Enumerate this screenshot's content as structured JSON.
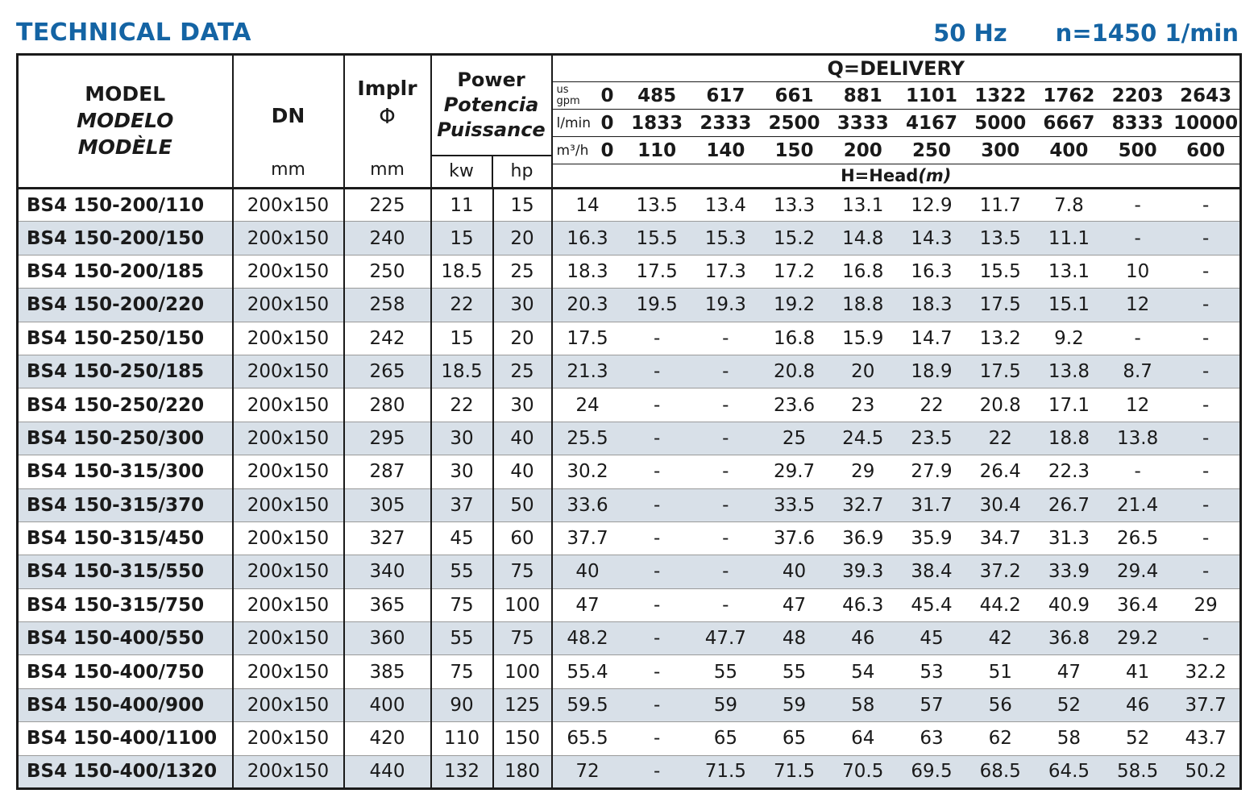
{
  "header": {
    "title": "TECHNICAL DATA",
    "frequency": "50 Hz",
    "speed": "n=1450 1/min"
  },
  "table": {
    "model_header": {
      "l1": "MODEL",
      "l2": "MODELO",
      "l3": "MODÈLE"
    },
    "dn_header": {
      "label": "DN",
      "unit": "mm"
    },
    "implr_header": {
      "l1": "Implr",
      "l2": "Φ",
      "unit": "mm"
    },
    "power_header": {
      "l1": "Power",
      "l2": "Potencia",
      "l3": "Puissance",
      "kw": "kw",
      "hp": "hp"
    },
    "delivery": {
      "title": "Q=DELIVERY",
      "unit_rows": [
        {
          "unit_lines": [
            "us",
            "gpm"
          ],
          "zero": "0",
          "values": [
            "485",
            "617",
            "661",
            "881",
            "1101",
            "1322",
            "1762",
            "2203",
            "2643"
          ]
        },
        {
          "unit_lines": [
            "l/min"
          ],
          "zero": "0",
          "values": [
            "1833",
            "2333",
            "2500",
            "3333",
            "4167",
            "5000",
            "6667",
            "8333",
            "10000"
          ]
        },
        {
          "unit_lines": [
            "m³/h"
          ],
          "zero": "0",
          "values": [
            "110",
            "140",
            "150",
            "200",
            "250",
            "300",
            "400",
            "500",
            "600"
          ]
        }
      ],
      "head_label": "H=Head",
      "head_unit": "(m)"
    },
    "rows": [
      {
        "model": "BS4 150-200/110",
        "dn": "200x150",
        "implr": "225",
        "kw": "11",
        "hp": "15",
        "head": [
          "14",
          "13.5",
          "13.4",
          "13.3",
          "13.1",
          "12.9",
          "11.7",
          "7.8",
          "-",
          "-"
        ]
      },
      {
        "model": "BS4 150-200/150",
        "dn": "200x150",
        "implr": "240",
        "kw": "15",
        "hp": "20",
        "head": [
          "16.3",
          "15.5",
          "15.3",
          "15.2",
          "14.8",
          "14.3",
          "13.5",
          "11.1",
          "-",
          "-"
        ]
      },
      {
        "model": "BS4 150-200/185",
        "dn": "200x150",
        "implr": "250",
        "kw": "18.5",
        "hp": "25",
        "head": [
          "18.3",
          "17.5",
          "17.3",
          "17.2",
          "16.8",
          "16.3",
          "15.5",
          "13.1",
          "10",
          "-"
        ]
      },
      {
        "model": "BS4 150-200/220",
        "dn": "200x150",
        "implr": "258",
        "kw": "22",
        "hp": "30",
        "head": [
          "20.3",
          "19.5",
          "19.3",
          "19.2",
          "18.8",
          "18.3",
          "17.5",
          "15.1",
          "12",
          "-"
        ]
      },
      {
        "model": "BS4 150-250/150",
        "dn": "200x150",
        "implr": "242",
        "kw": "15",
        "hp": "20",
        "head": [
          "17.5",
          "-",
          "-",
          "16.8",
          "15.9",
          "14.7",
          "13.2",
          "9.2",
          "-",
          "-"
        ]
      },
      {
        "model": "BS4 150-250/185",
        "dn": "200x150",
        "implr": "265",
        "kw": "18.5",
        "hp": "25",
        "head": [
          "21.3",
          "-",
          "-",
          "20.8",
          "20",
          "18.9",
          "17.5",
          "13.8",
          "8.7",
          "-"
        ]
      },
      {
        "model": "BS4 150-250/220",
        "dn": "200x150",
        "implr": "280",
        "kw": "22",
        "hp": "30",
        "head": [
          "24",
          "-",
          "-",
          "23.6",
          "23",
          "22",
          "20.8",
          "17.1",
          "12",
          "-"
        ]
      },
      {
        "model": "BS4 150-250/300",
        "dn": "200x150",
        "implr": "295",
        "kw": "30",
        "hp": "40",
        "head": [
          "25.5",
          "-",
          "-",
          "25",
          "24.5",
          "23.5",
          "22",
          "18.8",
          "13.8",
          "-"
        ]
      },
      {
        "model": "BS4 150-315/300",
        "dn": "200x150",
        "implr": "287",
        "kw": "30",
        "hp": "40",
        "head": [
          "30.2",
          "-",
          "-",
          "29.7",
          "29",
          "27.9",
          "26.4",
          "22.3",
          "-",
          "-"
        ]
      },
      {
        "model": "BS4 150-315/370",
        "dn": "200x150",
        "implr": "305",
        "kw": "37",
        "hp": "50",
        "head": [
          "33.6",
          "-",
          "-",
          "33.5",
          "32.7",
          "31.7",
          "30.4",
          "26.7",
          "21.4",
          "-"
        ]
      },
      {
        "model": "BS4 150-315/450",
        "dn": "200x150",
        "implr": "327",
        "kw": "45",
        "hp": "60",
        "head": [
          "37.7",
          "-",
          "-",
          "37.6",
          "36.9",
          "35.9",
          "34.7",
          "31.3",
          "26.5",
          "-"
        ]
      },
      {
        "model": "BS4 150-315/550",
        "dn": "200x150",
        "implr": "340",
        "kw": "55",
        "hp": "75",
        "head": [
          "40",
          "-",
          "-",
          "40",
          "39.3",
          "38.4",
          "37.2",
          "33.9",
          "29.4",
          "-"
        ]
      },
      {
        "model": "BS4 150-315/750",
        "dn": "200x150",
        "implr": "365",
        "kw": "75",
        "hp": "100",
        "head": [
          "47",
          "-",
          "-",
          "47",
          "46.3",
          "45.4",
          "44.2",
          "40.9",
          "36.4",
          "29"
        ]
      },
      {
        "model": "BS4 150-400/550",
        "dn": "200x150",
        "implr": "360",
        "kw": "55",
        "hp": "75",
        "head": [
          "48.2",
          "-",
          "47.7",
          "48",
          "46",
          "45",
          "42",
          "36.8",
          "29.2",
          "-"
        ]
      },
      {
        "model": "BS4 150-400/750",
        "dn": "200x150",
        "implr": "385",
        "kw": "75",
        "hp": "100",
        "head": [
          "55.4",
          "-",
          "55",
          "55",
          "54",
          "53",
          "51",
          "47",
          "41",
          "32.2"
        ]
      },
      {
        "model": "BS4 150-400/900",
        "dn": "200x150",
        "implr": "400",
        "kw": "90",
        "hp": "125",
        "head": [
          "59.5",
          "-",
          "59",
          "59",
          "58",
          "57",
          "56",
          "52",
          "46",
          "37.7"
        ]
      },
      {
        "model": "BS4 150-400/1100",
        "dn": "200x150",
        "implr": "420",
        "kw": "110",
        "hp": "150",
        "head": [
          "65.5",
          "-",
          "65",
          "65",
          "64",
          "63",
          "62",
          "58",
          "52",
          "43.7"
        ]
      },
      {
        "model": "BS4 150-400/1320",
        "dn": "200x150",
        "implr": "440",
        "kw": "132",
        "hp": "180",
        "head": [
          "72",
          "-",
          "71.5",
          "71.5",
          "70.5",
          "69.5",
          "68.5",
          "64.5",
          "58.5",
          "50.2"
        ]
      }
    ]
  }
}
